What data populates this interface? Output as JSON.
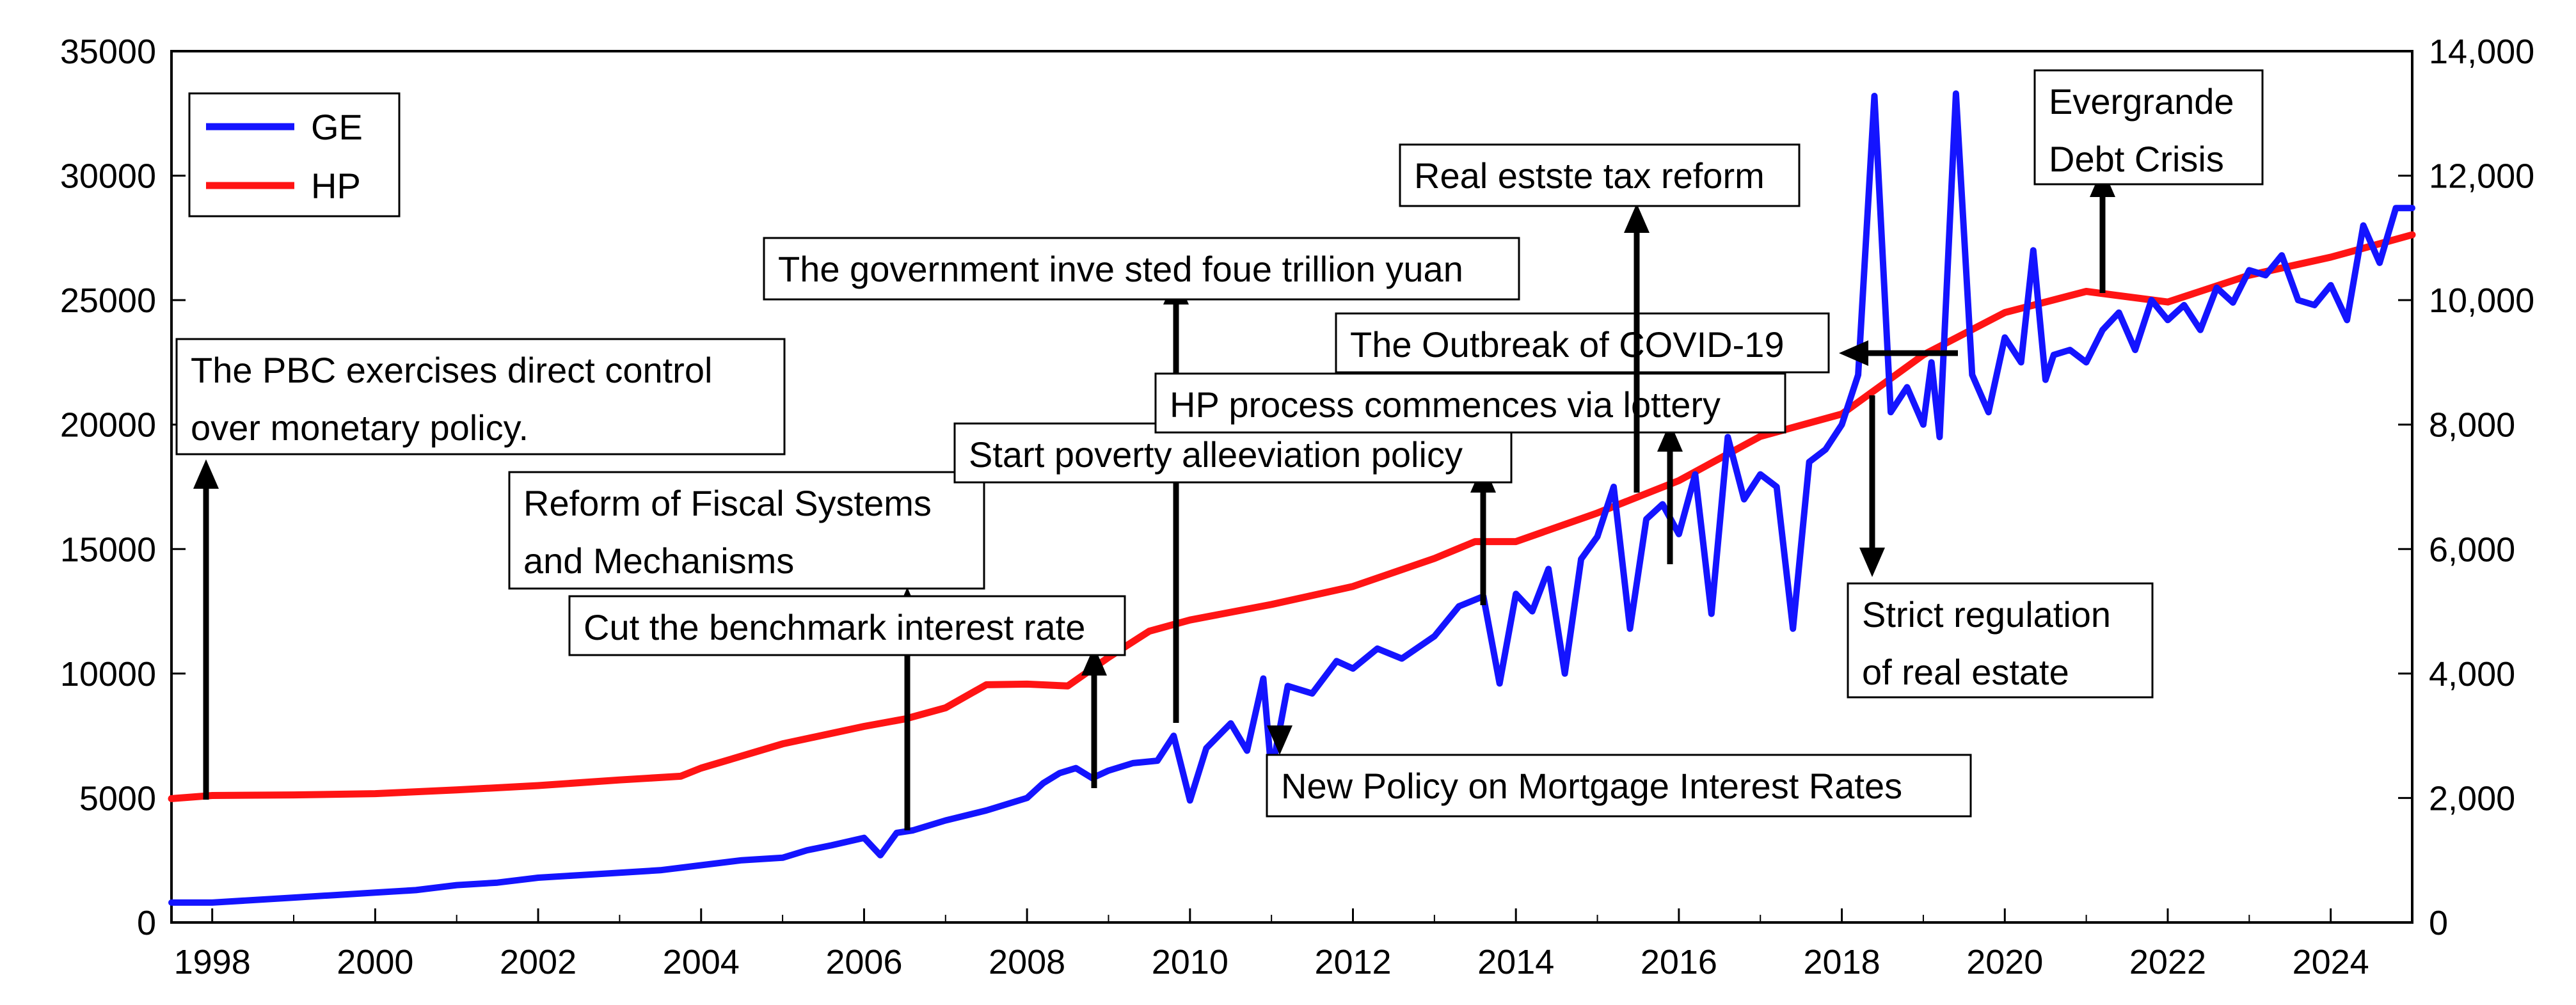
{
  "chart_data": {
    "type": "line",
    "title": "",
    "left_axis": {
      "min": 0,
      "max": 35000,
      "step": 5000,
      "tick_labels": [
        "0",
        "5000",
        "10000",
        "15000",
        "20000",
        "25000",
        "30000",
        "35000"
      ]
    },
    "right_axis": {
      "min": 0,
      "max": 14000,
      "step": 2000,
      "tick_labels": [
        "0",
        "2,000",
        "4,000",
        "6,000",
        "8,000",
        "10,000",
        "12,000",
        "14,000"
      ]
    },
    "x_axis": {
      "min": 1997.5,
      "max": 2025.0,
      "tick_labels": [
        "1998",
        "2000",
        "2002",
        "2004",
        "2006",
        "2008",
        "2010",
        "2012",
        "2014",
        "2016",
        "2018",
        "2020",
        "2022",
        "2024"
      ]
    },
    "legend": {
      "position": "top-left",
      "entries": [
        {
          "name": "GE",
          "color": "#1414ff"
        },
        {
          "name": "HP",
          "color": "#ff1414"
        }
      ]
    },
    "series": [
      {
        "name": "HP",
        "axis": "right",
        "color": "#ff1414",
        "x": [
          1997.5,
          1998,
          1999,
          2000,
          2001,
          2002,
          2003,
          2003.75,
          2004,
          2005,
          2006,
          2006.5,
          2007,
          2007.5,
          2008,
          2008.5,
          2009,
          2009.5,
          2010,
          2011,
          2012,
          2013,
          2013.5,
          2014,
          2015,
          2016,
          2017,
          2018,
          2019,
          2020,
          2021,
          2022,
          2023,
          2024,
          2025
        ],
        "values": [
          1990,
          2040,
          2050,
          2070,
          2130,
          2200,
          2290,
          2350,
          2480,
          2870,
          3150,
          3270,
          3450,
          3820,
          3830,
          3800,
          4260,
          4680,
          4860,
          5110,
          5400,
          5850,
          6120,
          6120,
          6580,
          7100,
          7810,
          8170,
          9120,
          9800,
          10140,
          9970,
          10400,
          10690,
          11050
        ]
      },
      {
        "name": "GE",
        "axis": "left",
        "color": "#1414ff",
        "x": [
          1997.5,
          1998,
          1998.5,
          1999,
          1999.5,
          2000,
          2000.5,
          2001,
          2001.5,
          2002,
          2002.5,
          2003,
          2003.5,
          2004,
          2004.5,
          2005,
          2005.3,
          2005.6,
          2006,
          2006.2,
          2006.4,
          2006.6,
          2007,
          2007.5,
          2008,
          2008.2,
          2008.4,
          2008.6,
          2008.8,
          2009,
          2009.3,
          2009.6,
          2009.8,
          2010,
          2010.2,
          2010.5,
          2010.7,
          2010.9,
          2011,
          2011.2,
          2011.5,
          2011.8,
          2012,
          2012.3,
          2012.6,
          2013,
          2013.3,
          2013.6,
          2013.8,
          2014,
          2014.2,
          2014.4,
          2014.6,
          2014.8,
          2015,
          2015.2,
          2015.4,
          2015.6,
          2015.8,
          2016,
          2016.2,
          2016.4,
          2016.6,
          2016.8,
          2017,
          2017.2,
          2017.4,
          2017.6,
          2017.8,
          2018,
          2018.2,
          2018.4,
          2018.6,
          2018.8,
          2019,
          2019.1,
          2019.2,
          2019.4,
          2019.6,
          2019.8,
          2020,
          2020.2,
          2020.35,
          2020.5,
          2020.6,
          2020.8,
          2021,
          2021.2,
          2021.4,
          2021.6,
          2021.8,
          2022,
          2022.2,
          2022.4,
          2022.6,
          2022.8,
          2023,
          2023.2,
          2023.4,
          2023.6,
          2023.8,
          2024,
          2024.2,
          2024.4,
          2024.6,
          2024.8,
          2025
        ],
        "values": [
          800,
          800,
          900,
          1000,
          1100,
          1200,
          1300,
          1500,
          1600,
          1800,
          1900,
          2000,
          2100,
          2300,
          2500,
          2600,
          2900,
          3100,
          3400,
          2700,
          3600,
          3700,
          4100,
          4500,
          5000,
          5600,
          6000,
          6200,
          5800,
          6100,
          6400,
          6500,
          7500,
          4900,
          7000,
          8000,
          6900,
          9800,
          6000,
          9500,
          9200,
          10500,
          10200,
          11000,
          10600,
          11500,
          12700,
          13100,
          9600,
          13200,
          12500,
          14200,
          10000,
          14600,
          15500,
          17500,
          11800,
          16200,
          16800,
          15600,
          18000,
          12400,
          19500,
          17000,
          18000,
          17500,
          11800,
          18500,
          19000,
          20000,
          22000,
          33200,
          20500,
          21500,
          20000,
          22500,
          19500,
          33300,
          22000,
          20500,
          23500,
          22500,
          27000,
          21800,
          22800,
          23000,
          22500,
          23800,
          24500,
          23000,
          25000,
          24200,
          24800,
          23800,
          25500,
          24900,
          26200,
          26000,
          26800,
          25000,
          24800,
          25600,
          24200,
          28000,
          26500,
          28700,
          28700
        ]
      }
    ],
    "annotations": [
      {
        "text": [
          "The PBC exercises direct control",
          "over monetary policy."
        ]
      },
      {
        "text": [
          "Reform of Fiscal Systems",
          "and Mechanisms"
        ]
      },
      {
        "text": [
          "Cut the benchmark interest rate"
        ]
      },
      {
        "text": [
          "The government inve sted foue trillion yuan"
        ]
      },
      {
        "text": [
          "Start poverty alleeviation policy"
        ]
      },
      {
        "text": [
          "HP process commences via lottery"
        ]
      },
      {
        "text": [
          "The Outbreak of COVID-19"
        ]
      },
      {
        "text": [
          "Real estste tax reform"
        ]
      },
      {
        "text": [
          "Evergrande",
          "Debt Crisis"
        ]
      },
      {
        "text": [
          "Strict regulation",
          "of real estate"
        ]
      },
      {
        "text": [
          "New Policy on Mortgage Interest Rates"
        ]
      }
    ]
  }
}
